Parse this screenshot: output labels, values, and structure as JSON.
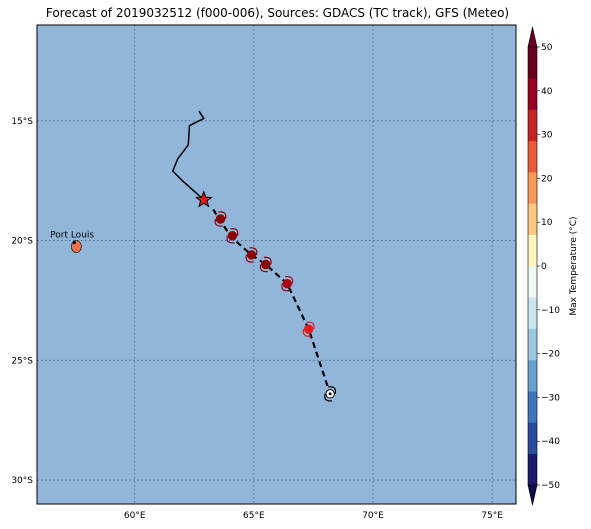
{
  "title": "Forecast of 2019032512 (f000-006), Sources: GDACS (TC track), GFS (Meteo)",
  "map": {
    "lat_labels": [
      "15°S",
      "20°S",
      "25°S",
      "30°S"
    ],
    "lon_labels": [
      "60°E",
      "65°E",
      "70°E",
      "75°E"
    ],
    "lat_values": [
      -15,
      -20,
      -25,
      -30
    ],
    "lon_values": [
      60,
      65,
      70,
      75
    ],
    "lon_range": [
      55.9,
      76
    ],
    "lat_range": [
      -31,
      -11
    ],
    "ocean_color": "#92b6da",
    "place_label": "Port Louis",
    "place_lon": 57.5,
    "place_lat": -20.2,
    "current_position": {
      "lon": 62.9,
      "lat": -18.3
    },
    "observed_track": [
      [
        62.7,
        -14.6
      ],
      [
        62.9,
        -14.9
      ],
      [
        62.3,
        -15.2
      ],
      [
        62.25,
        -16.0
      ],
      [
        61.8,
        -16.6
      ],
      [
        61.6,
        -17.1
      ],
      [
        62.0,
        -17.5
      ],
      [
        62.9,
        -18.3
      ]
    ],
    "forecast_track": [
      [
        63.3,
        -18.7
      ],
      [
        63.6,
        -19.2
      ],
      [
        64.1,
        -19.9
      ],
      [
        64.9,
        -20.6
      ],
      [
        65.5,
        -21.0
      ],
      [
        66.4,
        -21.8
      ],
      [
        67.3,
        -23.7
      ],
      [
        67.8,
        -25.2
      ],
      [
        68.2,
        -26.4
      ]
    ],
    "forecast_markers": [
      {
        "lon": 63.6,
        "lat": -19.1,
        "color": "#8b0000"
      },
      {
        "lon": 64.1,
        "lat": -19.8,
        "color": "#8b0000"
      },
      {
        "lon": 64.9,
        "lat": -20.6,
        "color": "#8b0000"
      },
      {
        "lon": 65.5,
        "lat": -21.0,
        "color": "#8b0000"
      },
      {
        "lon": 66.4,
        "lat": -21.8,
        "color": "#a50015"
      },
      {
        "lon": 67.3,
        "lat": -23.7,
        "color": "#e41a1c"
      },
      {
        "lon": 68.2,
        "lat": -26.4,
        "color": "#ffffff"
      }
    ]
  },
  "colorbar": {
    "label": "Max Temperature (°C)",
    "tick_labels": [
      "50",
      "40",
      "30",
      "20",
      "10",
      "0",
      "−10",
      "−20",
      "−30",
      "−40",
      "−50"
    ],
    "tick_values": [
      50,
      40,
      30,
      20,
      10,
      0,
      -10,
      -20,
      -30,
      -40,
      -50
    ],
    "range": [
      -50,
      50
    ],
    "colors": [
      "#1a1a6e",
      "#2b4c9e",
      "#3f76b8",
      "#6aa1cc",
      "#9bc8e0",
      "#c9e5ef",
      "#eef8f2",
      "#fff3c2",
      "#fdc982",
      "#f99858",
      "#ea5b3a",
      "#c82128",
      "#9a001f",
      "#67001f"
    ]
  }
}
